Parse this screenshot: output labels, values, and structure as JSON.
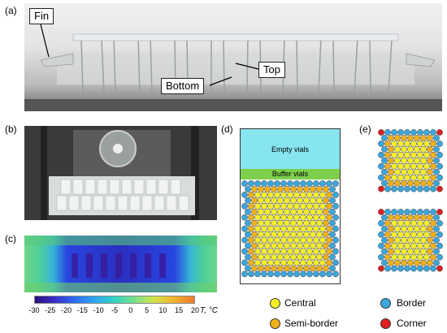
{
  "panels": {
    "a": {
      "label": "(a)",
      "callouts": {
        "fin": "Fin",
        "top": "Top",
        "bottom": "Bottom"
      }
    },
    "b": {
      "label": "(b)"
    },
    "c": {
      "label": "(c)",
      "colorbar": {
        "ticks": [
          "-30",
          "-25",
          "-20",
          "-15",
          "-10",
          "-5",
          "0",
          "5",
          "10",
          "15",
          "20"
        ],
        "unit": "T, °C",
        "colors": [
          "#2a0f7a",
          "#3b2fc9",
          "#2e6cf2",
          "#2fa6f0",
          "#32d4c4",
          "#7ae08a",
          "#d5e34a",
          "#f2b233",
          "#f07a2a"
        ]
      }
    },
    "d": {
      "label": "(d)",
      "regions": {
        "empty": "Empty vials",
        "buffer": "Buffer vials"
      },
      "colors": {
        "empty": "#86e5ee",
        "buffer": "#7dcf4c"
      }
    },
    "e": {
      "label": "(e)"
    }
  },
  "legend": {
    "central": {
      "label": "Central",
      "color": "#f5ef2a"
    },
    "semi_border": {
      "label": "Semi-border",
      "color": "#f0b21a"
    },
    "border": {
      "label": "Border",
      "color": "#3aa7dd"
    },
    "corner": {
      "label": "Corner",
      "color": "#e02020"
    }
  }
}
